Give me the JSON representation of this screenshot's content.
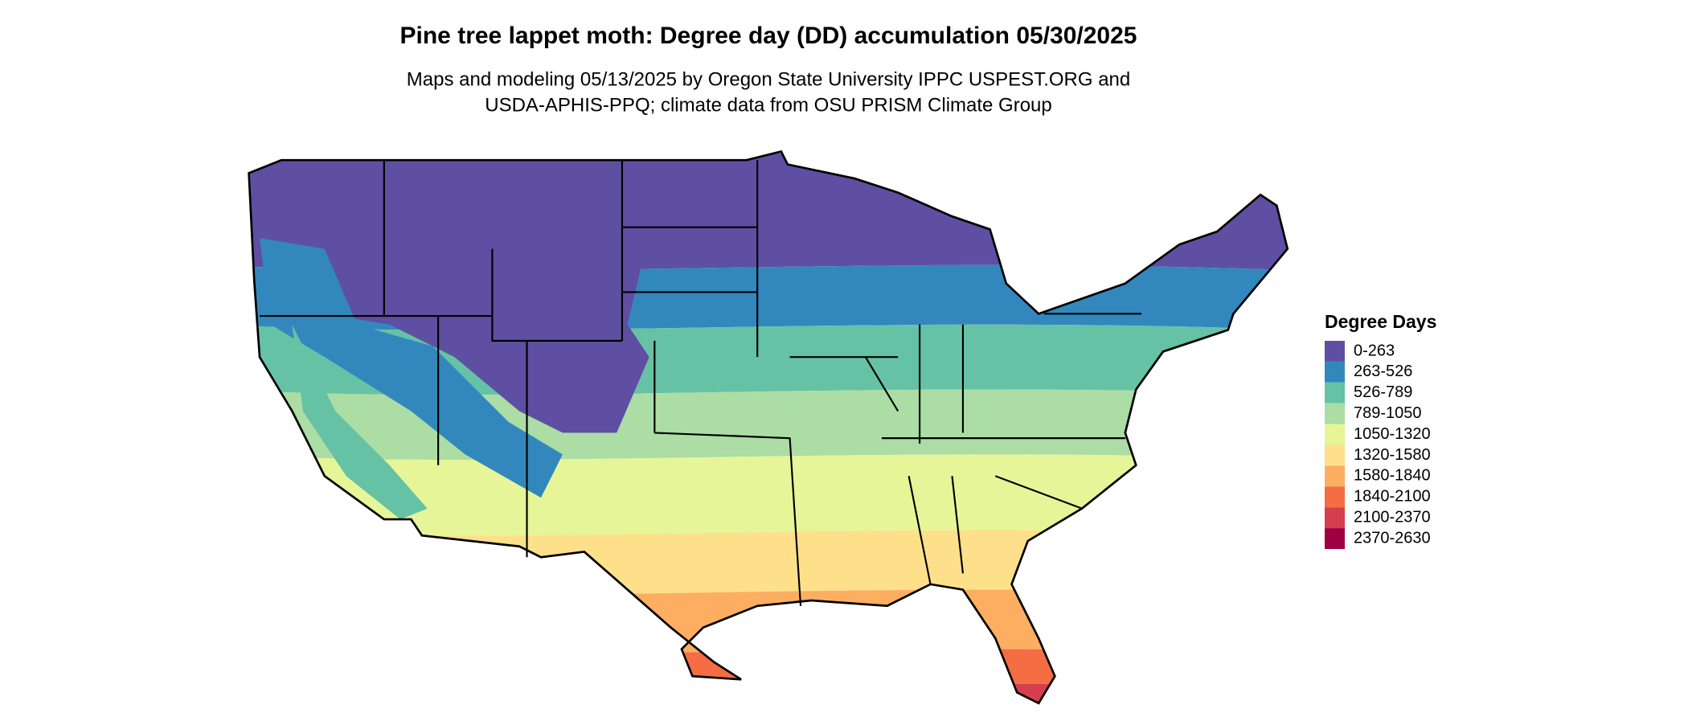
{
  "title": "Pine tree lappet moth: Degree day (DD) accumulation 05/30/2025",
  "subtitle": [
    "Maps and modeling 05/13/2025 by Oregon State University IPPC USPEST.ORG and",
    "USDA-APHIS-PPQ; climate data from OSU PRISM Climate Group"
  ],
  "legend": {
    "title": "Degree Days",
    "items": [
      {
        "label": "0-263",
        "color": "#5e4fa2"
      },
      {
        "label": "263-526",
        "color": "#3288bd"
      },
      {
        "label": "526-789",
        "color": "#66c2a5"
      },
      {
        "label": "789-1050",
        "color": "#abdda4"
      },
      {
        "label": "1050-1320",
        "color": "#e6f598"
      },
      {
        "label": "1320-1580",
        "color": "#fee08b"
      },
      {
        "label": "1580-1840",
        "color": "#fdae61"
      },
      {
        "label": "1840-2100",
        "color": "#f46d43"
      },
      {
        "label": "2100-2370",
        "color": "#d53e4f"
      },
      {
        "label": "2370-2630",
        "color": "#9e0142"
      }
    ]
  }
}
